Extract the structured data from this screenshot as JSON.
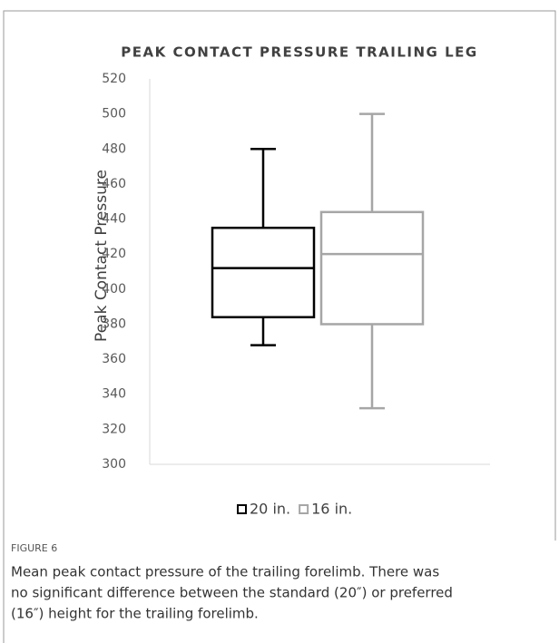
{
  "chart_data": {
    "type": "box",
    "title": "PEAK CONTACT PRESSURE TRAILING LEG",
    "ylabel": "Peak Contact  Pressure",
    "ylim": [
      300,
      520
    ],
    "yticks": [
      300,
      320,
      340,
      360,
      380,
      400,
      420,
      440,
      460,
      480,
      500,
      520
    ],
    "series": [
      {
        "name": "20 in.",
        "color": "#000000",
        "min": 368,
        "q1": 384,
        "median": 412,
        "q3": 435,
        "max": 480
      },
      {
        "name": "16 in.",
        "color": "#a6a6a6",
        "min": 332,
        "q1": 380,
        "median": 420,
        "q3": 444,
        "max": 500
      }
    ],
    "legend": "bottom"
  },
  "caption": {
    "label": "FIGURE 6",
    "lines": [
      "Mean peak contact pressure of the trailing forelimb. There was",
      "no significant difference between the standard (20″) or preferred",
      "(16″) height for the trailing forelimb."
    ]
  }
}
